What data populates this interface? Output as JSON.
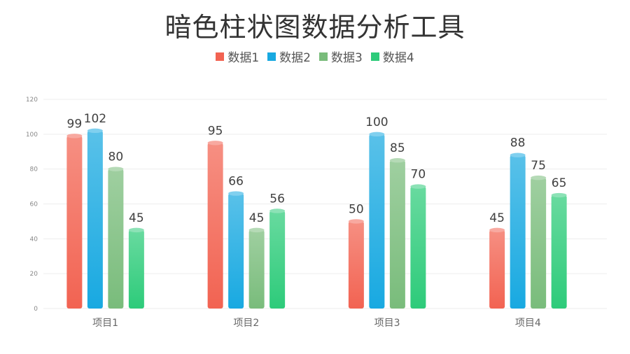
{
  "header": {
    "title": "暗色柱状图数据分析工具"
  },
  "chart_data": {
    "type": "bar",
    "title": "暗色柱状图数据分析工具",
    "categories": [
      "项目1",
      "项目2",
      "项目3",
      "项目4"
    ],
    "series": [
      {
        "name": "数据1",
        "values": [
          99,
          95,
          50,
          45
        ],
        "color": "#F26352"
      },
      {
        "name": "数据2",
        "values": [
          102,
          66,
          100,
          88
        ],
        "color": "#18A9E1"
      },
      {
        "name": "数据3",
        "values": [
          80,
          45,
          85,
          75
        ],
        "color": "#79BC7B"
      },
      {
        "name": "数据4",
        "values": [
          45,
          56,
          70,
          65
        ],
        "color": "#2DCB7A"
      }
    ],
    "yticks": [
      0,
      20,
      40,
      60,
      80,
      100,
      120
    ],
    "ylim": [
      0,
      120
    ],
    "xlabel": "",
    "ylabel": "",
    "grid": true,
    "legend": "top-center"
  }
}
